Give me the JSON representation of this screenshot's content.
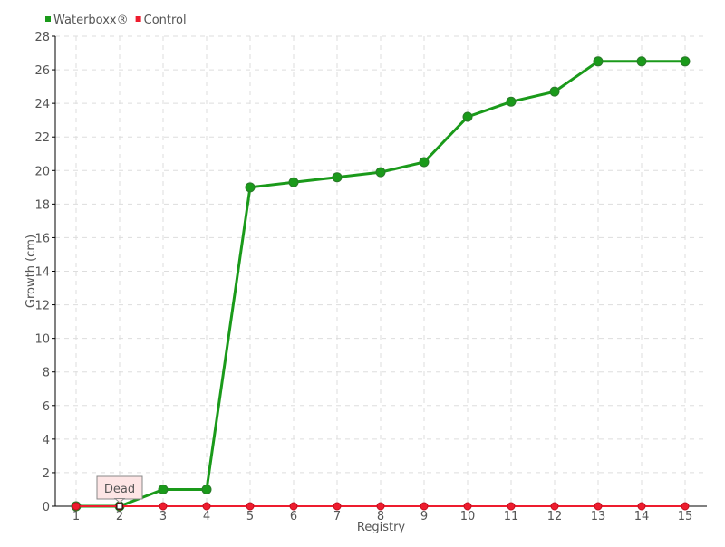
{
  "chart_data": {
    "type": "line",
    "title": "",
    "xlabel": "Registry",
    "ylabel": "Growth (cm)",
    "categories": [
      "1",
      "2",
      "3",
      "4",
      "5",
      "6",
      "7",
      "8",
      "9",
      "10",
      "11",
      "12",
      "13",
      "14",
      "15"
    ],
    "ylim": [
      0,
      28
    ],
    "yticks": [
      0,
      2,
      4,
      6,
      8,
      10,
      12,
      14,
      16,
      18,
      20,
      22,
      24,
      26,
      28
    ],
    "grid": true,
    "legend_position": "top-left",
    "series": [
      {
        "name": "Waterboxx®",
        "color": "#1a9a1a",
        "values": [
          0,
          0,
          1,
          1,
          19,
          19.3,
          19.6,
          19.9,
          20.5,
          23.2,
          24.1,
          24.7,
          26.5,
          26.5,
          26.5
        ]
      },
      {
        "name": "Control",
        "color": "#ee1c2e",
        "values": [
          0,
          0,
          0,
          0,
          0,
          0,
          0,
          0,
          0,
          0,
          0,
          0,
          0,
          0,
          0
        ]
      }
    ],
    "annotations": [
      {
        "text": "Dead",
        "category": "2",
        "value": 0
      }
    ]
  }
}
